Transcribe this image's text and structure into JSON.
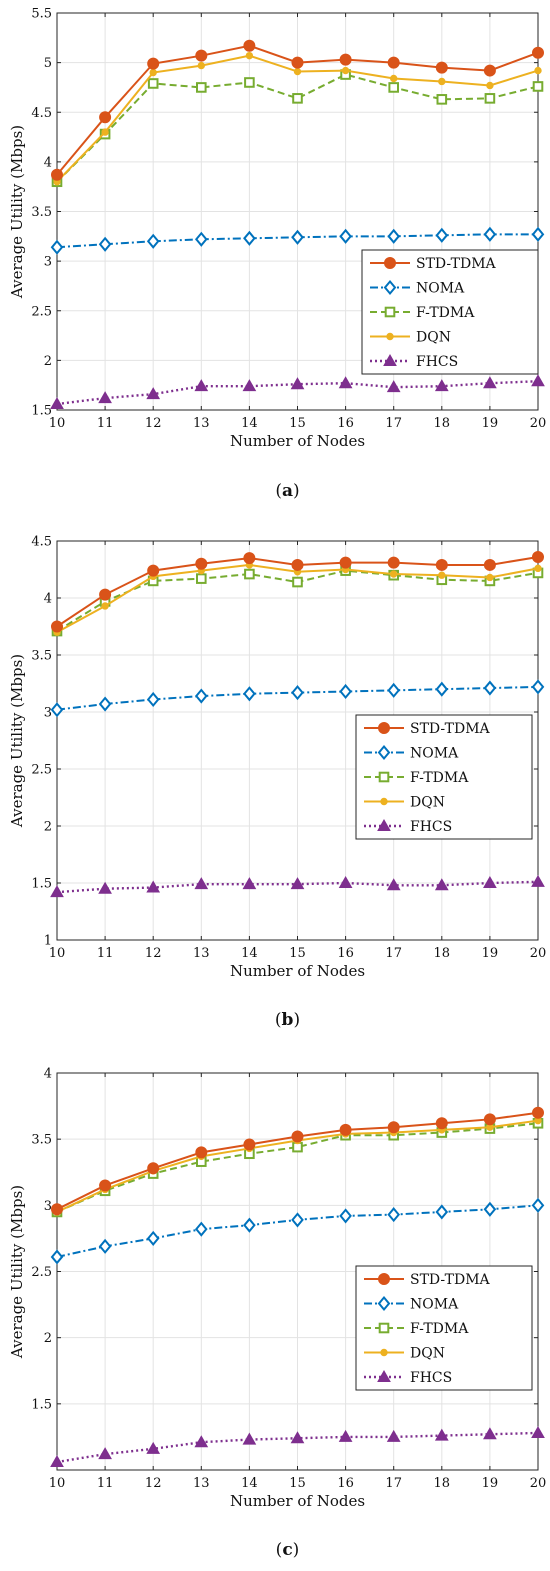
{
  "figure": {
    "captions": [
      "(a)",
      "(b)",
      "(c)"
    ]
  },
  "chart_data": [
    {
      "type": "line",
      "caption": "(a)",
      "xlabel": "Number of Nodes",
      "ylabel": "Average Utility (Mbps)",
      "x": [
        10,
        11,
        12,
        13,
        14,
        15,
        16,
        17,
        18,
        19,
        20
      ],
      "xlim": [
        10,
        20
      ],
      "ylim": [
        1.5,
        5.5
      ],
      "yticks": [
        1.5,
        2,
        2.5,
        3,
        3.5,
        4,
        4.5,
        5,
        5.5
      ],
      "grid": true,
      "legend_position": "lower-right",
      "series": [
        {
          "name": "STD-TDMA",
          "color": "#d95319",
          "marker": "circle",
          "dash": "solid",
          "values": [
            3.87,
            4.45,
            4.99,
            5.07,
            5.17,
            5.0,
            5.03,
            5.0,
            4.95,
            4.92,
            5.1
          ]
        },
        {
          "name": "NOMA",
          "color": "#0072bd",
          "marker": "diamond",
          "dash": "dashdot",
          "values": [
            3.14,
            3.17,
            3.2,
            3.22,
            3.23,
            3.24,
            3.25,
            3.25,
            3.26,
            3.27,
            3.27
          ]
        },
        {
          "name": "F-TDMA",
          "color": "#77ac30",
          "marker": "square",
          "dash": "dashed",
          "values": [
            3.8,
            4.28,
            4.79,
            4.75,
            4.8,
            4.64,
            4.88,
            4.75,
            4.63,
            4.64,
            4.76
          ]
        },
        {
          "name": "DQN",
          "color": "#edb120",
          "marker": "dot",
          "dash": "solid",
          "values": [
            3.8,
            4.3,
            4.9,
            4.97,
            5.07,
            4.91,
            4.92,
            4.84,
            4.81,
            4.77,
            4.92
          ]
        },
        {
          "name": "FHCS",
          "color": "#7e2f8e",
          "marker": "triangle",
          "dash": "dotted",
          "values": [
            1.56,
            1.62,
            1.66,
            1.74,
            1.74,
            1.76,
            1.77,
            1.73,
            1.74,
            1.77,
            1.79
          ]
        }
      ]
    },
    {
      "type": "line",
      "caption": "(b)",
      "xlabel": "Number of Nodes",
      "ylabel": "Average Utility (Mbps)",
      "x": [
        10,
        11,
        12,
        13,
        14,
        15,
        16,
        17,
        18,
        19,
        20
      ],
      "xlim": [
        10,
        20
      ],
      "ylim": [
        1,
        4.5
      ],
      "yticks": [
        1,
        1.5,
        2,
        2.5,
        3,
        3.5,
        4,
        4.5
      ],
      "grid": true,
      "legend_position": "center-right",
      "series": [
        {
          "name": "STD-TDMA",
          "color": "#d95319",
          "marker": "circle",
          "dash": "solid",
          "values": [
            3.75,
            4.03,
            4.24,
            4.3,
            4.35,
            4.29,
            4.31,
            4.31,
            4.29,
            4.29,
            4.36
          ]
        },
        {
          "name": "NOMA",
          "color": "#0072bd",
          "marker": "diamond",
          "dash": "dashdot",
          "values": [
            3.02,
            3.07,
            3.11,
            3.14,
            3.16,
            3.17,
            3.18,
            3.19,
            3.2,
            3.21,
            3.22
          ]
        },
        {
          "name": "F-TDMA",
          "color": "#77ac30",
          "marker": "square",
          "dash": "dashed",
          "values": [
            3.71,
            3.97,
            4.15,
            4.17,
            4.21,
            4.14,
            4.24,
            4.2,
            4.16,
            4.15,
            4.22
          ]
        },
        {
          "name": "DQN",
          "color": "#edb120",
          "marker": "dot",
          "dash": "solid",
          "values": [
            3.7,
            3.93,
            4.19,
            4.24,
            4.29,
            4.23,
            4.25,
            4.21,
            4.2,
            4.18,
            4.26
          ]
        },
        {
          "name": "FHCS",
          "color": "#7e2f8e",
          "marker": "triangle",
          "dash": "dotted",
          "values": [
            1.42,
            1.45,
            1.46,
            1.49,
            1.49,
            1.49,
            1.5,
            1.48,
            1.48,
            1.5,
            1.51
          ]
        }
      ]
    },
    {
      "type": "line",
      "caption": "(c)",
      "xlabel": "Number of Nodes",
      "ylabel": "Average Utility (Mbps)",
      "x": [
        10,
        11,
        12,
        13,
        14,
        15,
        16,
        17,
        18,
        19,
        20
      ],
      "xlim": [
        10,
        20
      ],
      "ylim": [
        1,
        4
      ],
      "yticks": [
        1.5,
        2,
        2.5,
        3,
        3.5,
        4
      ],
      "grid": true,
      "legend_position": "lower-right",
      "series": [
        {
          "name": "STD-TDMA",
          "color": "#d95319",
          "marker": "circle",
          "dash": "solid",
          "values": [
            2.97,
            3.15,
            3.28,
            3.4,
            3.46,
            3.52,
            3.57,
            3.59,
            3.62,
            3.65,
            3.7
          ]
        },
        {
          "name": "NOMA",
          "color": "#0072bd",
          "marker": "diamond",
          "dash": "dashdot",
          "values": [
            2.61,
            2.69,
            2.75,
            2.82,
            2.85,
            2.89,
            2.92,
            2.93,
            2.95,
            2.97,
            3.0
          ]
        },
        {
          "name": "F-TDMA",
          "color": "#77ac30",
          "marker": "square",
          "dash": "dashed",
          "values": [
            2.95,
            3.11,
            3.24,
            3.33,
            3.39,
            3.44,
            3.53,
            3.53,
            3.55,
            3.58,
            3.62
          ]
        },
        {
          "name": "DQN",
          "color": "#edb120",
          "marker": "dot",
          "dash": "solid",
          "values": [
            2.95,
            3.12,
            3.26,
            3.37,
            3.43,
            3.49,
            3.54,
            3.55,
            3.57,
            3.59,
            3.64
          ]
        },
        {
          "name": "FHCS",
          "color": "#7e2f8e",
          "marker": "triangle",
          "dash": "dotted",
          "values": [
            1.06,
            1.12,
            1.16,
            1.21,
            1.23,
            1.24,
            1.25,
            1.25,
            1.26,
            1.27,
            1.28
          ]
        }
      ]
    }
  ]
}
